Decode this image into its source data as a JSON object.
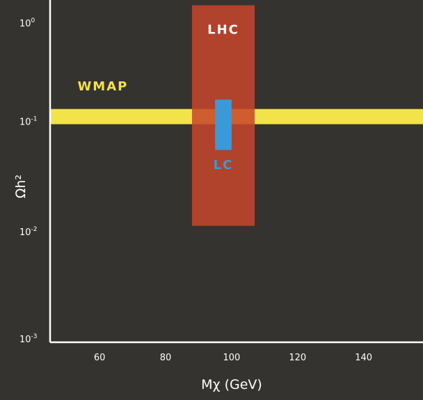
{
  "chart_data": {
    "type": "region",
    "xlabel": "Mχ (GeV)",
    "ylabel": "Ωh²",
    "x_ticks": [
      "60",
      "80",
      "100",
      "120",
      "140"
    ],
    "x_tick_values": [
      60,
      80,
      100,
      120,
      140
    ],
    "y_ticks": [
      {
        "base": "10",
        "exp": "0",
        "value": 1
      },
      {
        "base": "10",
        "exp": "-1",
        "value": 0.1
      },
      {
        "base": "10",
        "exp": "-2",
        "value": 0.01
      },
      {
        "base": "10",
        "exp": "-3",
        "value": 0.001
      }
    ],
    "xlim": [
      45,
      158
    ],
    "ylim": [
      0.001,
      1.25
    ],
    "y_scale": "log",
    "grid": false,
    "regions": [
      {
        "name": "WMAP",
        "x_range": [
          45,
          158
        ],
        "y_range": [
          0.094,
          0.129
        ],
        "color": "#f2e34a",
        "opacity": 1.0
      },
      {
        "name": "LHC",
        "x_range": [
          88,
          107
        ],
        "y_range": [
          0.0113,
          1.12
        ],
        "color": "#c8452a",
        "opacity": 0.85
      },
      {
        "name": "LC",
        "x_range": [
          95,
          100
        ],
        "y_range": [
          0.055,
          0.157
        ],
        "color": "#3a9ad9",
        "opacity": 1.0
      }
    ],
    "labels": [
      {
        "text": "WMAP",
        "color": "#f2e34a"
      },
      {
        "text": "LHC",
        "color": "#ffffff"
      },
      {
        "text": "LC",
        "color": "#3a9ad9"
      }
    ]
  }
}
